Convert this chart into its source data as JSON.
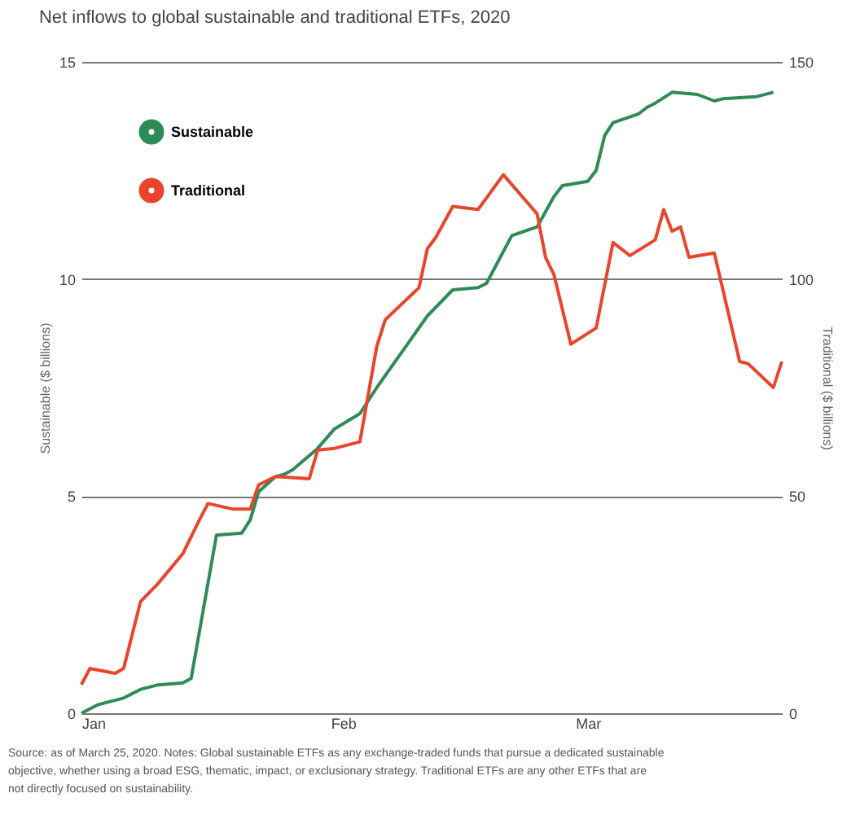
{
  "chart_data": {
    "type": "line",
    "title": "Net inflows to global sustainable and traditional ETFs, 2020",
    "ylabel": "Sustainable ($ billions)",
    "y2label": "Traditional ($ billions)",
    "xlim": [
      "2020-01-01",
      "2020-03-24"
    ],
    "xticks": [
      {
        "value": "2020-01-01",
        "label": "Jan"
      },
      {
        "value": "2020-02-01",
        "label": "Feb"
      },
      {
        "value": "2020-03-01",
        "label": "Mar"
      }
    ],
    "ylim": [
      0,
      15
    ],
    "yticks": [
      0,
      5,
      10,
      15
    ],
    "y2lim": [
      0,
      150
    ],
    "y2ticks": [
      0,
      50,
      100,
      150
    ],
    "grid": "y",
    "legend": "top left",
    "line_style": "solid",
    "marker": "none",
    "series": [
      {
        "name": "Sustainable",
        "color": "#2e8b57",
        "x": [
          "2020-01-01",
          "2020-01-03",
          "2020-01-06",
          "2020-01-08",
          "2020-01-10",
          "2020-01-13",
          "2020-01-14",
          "2020-01-17",
          "2020-01-20",
          "2020-01-21",
          "2020-01-22",
          "2020-01-24",
          "2020-01-25",
          "2020-01-26",
          "2020-01-29",
          "2020-01-31",
          "2020-02-03",
          "2020-02-05",
          "2020-02-09",
          "2020-02-11",
          "2020-02-14",
          "2020-02-17",
          "2020-02-18",
          "2020-02-21",
          "2020-02-24",
          "2020-02-26",
          "2020-02-27",
          "2020-03-01",
          "2020-03-02",
          "2020-03-03",
          "2020-03-04",
          "2020-03-07",
          "2020-03-08",
          "2020-03-09",
          "2020-03-11",
          "2020-03-14",
          "2020-03-16",
          "2020-03-17",
          "2020-03-21",
          "2020-03-23"
        ],
        "values": [
          0,
          0.2,
          0.35,
          0.55,
          0.65,
          0.7,
          0.8,
          4.1,
          4.15,
          4.45,
          5.1,
          5.45,
          5.5,
          5.6,
          6.1,
          6.55,
          6.9,
          7.5,
          8.6,
          9.15,
          9.75,
          9.8,
          9.9,
          11.0,
          11.2,
          11.9,
          12.15,
          12.25,
          12.5,
          13.3,
          13.6,
          13.8,
          13.95,
          14.05,
          14.3,
          14.25,
          14.1,
          14.15,
          14.2,
          14.3
        ]
      },
      {
        "name": "Traditional",
        "color": "#e8452c",
        "axis": "y2",
        "x": [
          "2020-01-01",
          "2020-01-02",
          "2020-01-05",
          "2020-01-06",
          "2020-01-08",
          "2020-01-10",
          "2020-01-13",
          "2020-01-15",
          "2020-01-16",
          "2020-01-19",
          "2020-01-21",
          "2020-01-22",
          "2020-01-24",
          "2020-01-28",
          "2020-01-29",
          "2020-01-31",
          "2020-02-03",
          "2020-02-05",
          "2020-02-06",
          "2020-02-10",
          "2020-02-11",
          "2020-02-12",
          "2020-02-14",
          "2020-02-17",
          "2020-02-20",
          "2020-02-24",
          "2020-02-25",
          "2020-02-26",
          "2020-02-28",
          "2020-03-02",
          "2020-03-04",
          "2020-03-06",
          "2020-03-09",
          "2020-03-10",
          "2020-03-11",
          "2020-03-12",
          "2020-03-13",
          "2020-03-16",
          "2020-03-19",
          "2020-03-20",
          "2020-03-23",
          "2020-03-24"
        ],
        "values": [
          6.6,
          10.3,
          9.2,
          10.3,
          25.7,
          29.7,
          36.7,
          44.6,
          48.3,
          47,
          47,
          52.6,
          54.5,
          54,
          60.6,
          61,
          62.5,
          84.5,
          90.6,
          98,
          107,
          109.6,
          116.7,
          116,
          124,
          115,
          105,
          101,
          85,
          88.7,
          108.4,
          105.4,
          109,
          116,
          111,
          112,
          105,
          106,
          81,
          80.5,
          75,
          81
        ]
      }
    ],
    "annotations": [
      "Source: as of March 25, 2020. Notes: Global sustainable ETFs as any exchange-traded funds that pursue a dedicated sustainable objective, whether using a broad ESG, thematic, impact, or exclusionary strategy.  Traditional ETFs are any other ETFs that are not directly focused on sustainability."
    ]
  }
}
